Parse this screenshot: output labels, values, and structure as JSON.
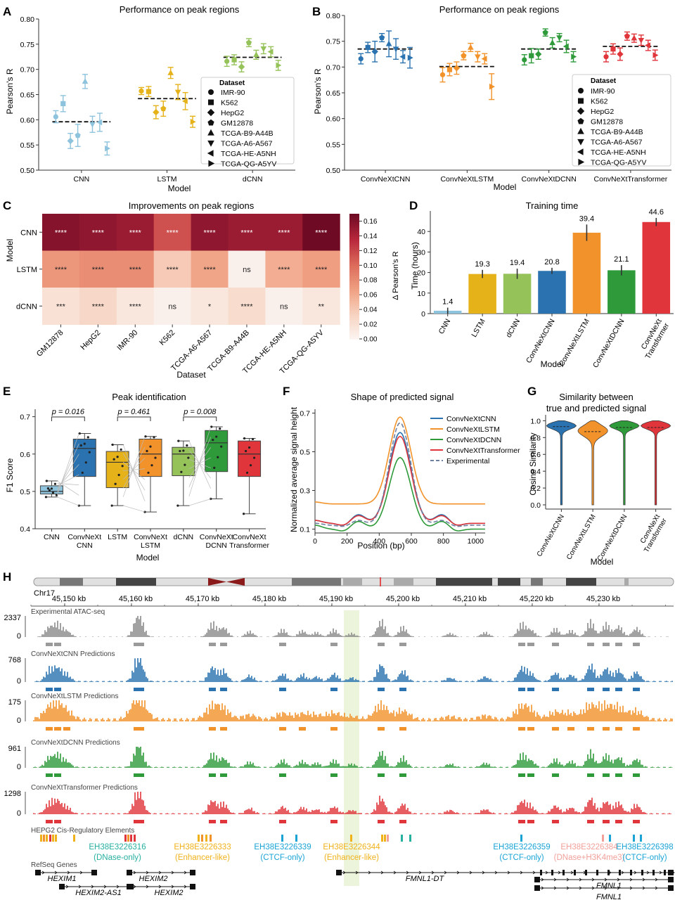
{
  "colors": {
    "CNN": "#8ec3dd",
    "LSTM": "#e6b21a",
    "dCNN": "#96c25a",
    "ConvNeXtCNN": "#2a73b0",
    "ConvNeXtLSTM": "#f2922a",
    "ConvNeXtDCNN": "#2e9a3a",
    "ConvNeXtTransformer": "#e0353b",
    "Experimental": "#8a8a8a",
    "ExperimentalLine": "#6f7fa0",
    "highlight": "#eaf3d8",
    "heat_low": "#fbf2ee",
    "heat_high": "#6e0a24"
  },
  "chart_data": [
    {
      "panel": "A",
      "type": "scatter",
      "title": "Performance on peak regions",
      "xlabel": "Model",
      "ylabel": "Pearson's R",
      "ylim": [
        0.5,
        0.8
      ],
      "yticks": [
        "0.50",
        "0.55",
        "0.60",
        "0.65",
        "0.70",
        "0.75",
        "0.80"
      ],
      "categories": [
        "CNN",
        "LSTM",
        "dCNN"
      ],
      "means": [
        0.596,
        0.642,
        0.724
      ],
      "legend_title": "Dataset",
      "legend": [
        "IMR-90",
        "K562",
        "HepG2",
        "GM12878",
        "TCGA-B9-A44B",
        "TCGA-A6-A567",
        "TCGA-HE-A5NH",
        "TCGA-QG-A5YV"
      ],
      "points": [
        [
          [
            0.606,
            0.012
          ],
          [
            0.632,
            0.016
          ],
          [
            0.558,
            0.015
          ],
          [
            0.569,
            0.022
          ],
          [
            0.676,
            0.014
          ],
          [
            0.591,
            0.016
          ],
          [
            0.595,
            0.018
          ],
          [
            0.543,
            0.013
          ]
        ],
        [
          [
            0.657,
            0.007
          ],
          [
            0.656,
            0.01
          ],
          [
            0.615,
            0.013
          ],
          [
            0.622,
            0.015
          ],
          [
            0.693,
            0.011
          ],
          [
            0.655,
            0.015
          ],
          [
            0.637,
            0.017
          ],
          [
            0.596,
            0.011
          ]
        ],
        [
          [
            0.716,
            0.01
          ],
          [
            0.719,
            0.01
          ],
          [
            0.705,
            0.01
          ],
          [
            0.753,
            0.008
          ],
          [
            0.729,
            0.009
          ],
          [
            0.741,
            0.01
          ],
          [
            0.735,
            0.01
          ],
          [
            0.708,
            0.01
          ]
        ]
      ]
    },
    {
      "panel": "B",
      "type": "scatter",
      "title": "Performance on peak regions",
      "xlabel": "Model",
      "ylabel": "Pearson's R",
      "ylim": [
        0.5,
        0.8
      ],
      "yticks": [
        "0.50",
        "0.55",
        "0.60",
        "0.65",
        "0.70",
        "0.75",
        "0.80"
      ],
      "categories": [
        "ConvNeXtCNN",
        "ConvNeXtLSTM",
        "ConvNeXtDCNN",
        "ConvNeXtTransformer"
      ],
      "means": [
        0.735,
        0.701,
        0.735,
        0.74
      ],
      "legend_title": "Dataset",
      "legend": [
        "IMR-90",
        "K562",
        "HepG2",
        "GM12878",
        "TCGA-B9-A44B",
        "TCGA-A6-A567",
        "TCGA-HE-A5NH",
        "TCGA-QG-A5YV"
      ],
      "points": [
        [
          [
            0.716,
            0.01
          ],
          [
            0.738,
            0.01
          ],
          [
            0.73,
            0.02
          ],
          [
            0.757,
            0.008
          ],
          [
            0.745,
            0.025
          ],
          [
            0.735,
            0.02
          ],
          [
            0.72,
            0.012
          ],
          [
            0.718,
            0.02
          ]
        ],
        [
          [
            0.685,
            0.014
          ],
          [
            0.695,
            0.012
          ],
          [
            0.698,
            0.012
          ],
          [
            0.722,
            0.008
          ],
          [
            0.738,
            0.008
          ],
          [
            0.72,
            0.01
          ],
          [
            0.716,
            0.01
          ],
          [
            0.662,
            0.025
          ]
        ],
        [
          [
            0.714,
            0.01
          ],
          [
            0.722,
            0.014
          ],
          [
            0.725,
            0.01
          ],
          [
            0.767,
            0.007
          ],
          [
            0.747,
            0.01
          ],
          [
            0.757,
            0.008
          ],
          [
            0.74,
            0.012
          ],
          [
            0.72,
            0.01
          ]
        ]
      ],
      "points_transformer": [
        [
          0.72,
          0.01
        ],
        [
          0.735,
          0.01
        ],
        [
          0.725,
          0.012
        ],
        [
          0.76,
          0.008
        ],
        [
          0.756,
          0.008
        ],
        [
          0.752,
          0.01
        ],
        [
          0.742,
          0.01
        ],
        [
          0.723,
          0.01
        ]
      ]
    },
    {
      "panel": "C",
      "type": "heatmap",
      "title": "Improvements on peak regions",
      "xlabel": "Dataset",
      "ylabel": "Model",
      "columns": [
        "GM12878",
        "HepG2",
        "IMR-90",
        "K562",
        "TCGA-A6-A567",
        "TCGA-B9-A44B",
        "TCGA-HE-A5NH",
        "TCGA-QG-A5YV"
      ],
      "rows": [
        "CNN",
        "LSTM",
        "dCNN"
      ],
      "values": [
        [
          0.16,
          0.155,
          0.15,
          0.115,
          0.155,
          0.15,
          0.15,
          0.175
        ],
        [
          0.075,
          0.08,
          0.08,
          0.04,
          0.065,
          0.005,
          0.06,
          0.07
        ],
        [
          0.02,
          0.03,
          0.015,
          0.005,
          0.015,
          0.025,
          0.005,
          0.015
        ]
      ],
      "labels": [
        [
          "****",
          "****",
          "****",
          "****",
          "****",
          "****",
          "****",
          "****"
        ],
        [
          "****",
          "****",
          "****",
          "****",
          "****",
          "ns",
          "****",
          "****"
        ],
        [
          "***",
          "****",
          "****",
          "ns",
          "*",
          "****",
          "ns",
          "**"
        ]
      ],
      "colorbar_label": "Δ Pearson's R",
      "colorbar_range": [
        0,
        0.17
      ],
      "colorbar_ticks": [
        "0.00",
        "0.02",
        "0.04",
        "0.06",
        "0.08",
        "0.10",
        "0.12",
        "0.14",
        "0.16"
      ]
    },
    {
      "panel": "D",
      "type": "bar",
      "title": "Training time",
      "xlabel": "Model",
      "ylabel": "Time (hours)",
      "ylim": [
        0,
        50
      ],
      "yticks": [
        "0",
        "10",
        "20",
        "30",
        "40"
      ],
      "categories": [
        "CNN",
        "LSTM",
        "dCNN",
        "ConvNeXtCNN",
        "ConvNeXtLSTM",
        "ConvNeXtDCNN",
        "ConvNeXt Transformer"
      ],
      "values": [
        1.4,
        19.3,
        19.4,
        20.8,
        39.4,
        21.1,
        44.6
      ],
      "value_labels": [
        "1.4",
        "19.3",
        "19.4",
        "20.8",
        "39.4",
        "21.1",
        "44.6"
      ],
      "errors": [
        1.5,
        2.0,
        2.5,
        1.5,
        4.0,
        2.5,
        2.0
      ]
    },
    {
      "panel": "E",
      "type": "box",
      "title": "Peak identification",
      "xlabel": "Model",
      "ylabel": "F1 Score",
      "ylim": [
        0.4,
        0.72
      ],
      "yticks": [
        "0.4",
        "0.5",
        "0.6",
        "0.7"
      ],
      "categories": [
        "CNN",
        "ConvNeXt CNN",
        "LSTM",
        "ConvNeXt LSTM",
        "dCNN",
        "ConvNeXt DCNN",
        "ConvNeXt Transformer"
      ],
      "stats": [
        [
          0.485,
          0.493,
          0.5,
          0.515,
          0.528
        ],
        [
          0.462,
          0.54,
          0.615,
          0.64,
          0.655
        ],
        [
          0.462,
          0.51,
          0.578,
          0.607,
          0.625
        ],
        [
          0.445,
          0.54,
          0.6,
          0.64,
          0.647
        ],
        [
          0.462,
          0.542,
          0.6,
          0.618,
          0.635
        ],
        [
          0.48,
          0.553,
          0.63,
          0.663,
          0.673
        ],
        [
          0.44,
          0.54,
          0.6,
          0.635,
          0.642
        ]
      ],
      "pvalues": [
        "p = 0.016",
        "p = 0.461",
        "p = 0.008"
      ]
    },
    {
      "panel": "F",
      "type": "line",
      "title": "Shape of predicted signal",
      "xlabel": "Position (bp)",
      "ylabel": "Normalized average signal height",
      "xlim": [
        0,
        1060
      ],
      "ylim": [
        0.08,
        0.72
      ],
      "xticks": [
        "0",
        "200",
        "400",
        "600",
        "800",
        "1000"
      ],
      "yticks": [
        "0.1",
        "0.3",
        "0.5",
        "0.7"
      ],
      "series": [
        {
          "name": "ConvNeXtCNN",
          "base": 0.13,
          "peak": 0.6,
          "side": 0.045,
          "edge": 0.015
        },
        {
          "name": "ConvNeXtLSTM",
          "base": 0.23,
          "peak": 0.68,
          "side": 0.01,
          "edge": 0.01
        },
        {
          "name": "ConvNeXtDCNN",
          "base": 0.1,
          "peak": 0.47,
          "side": 0.04,
          "edge": 0.02
        },
        {
          "name": "ConvNeXtTransformer",
          "base": 0.13,
          "peak": 0.58,
          "side": 0.04,
          "edge": 0.015
        },
        {
          "name": "Experimental",
          "base": 0.12,
          "peak": 0.65,
          "side": 0.025,
          "edge": 0.01
        }
      ]
    },
    {
      "panel": "G",
      "type": "violin",
      "title": "Similarity between true and predicted signal",
      "xlabel": "Model",
      "ylabel": "Cosine Similarity",
      "ylim": [
        -0.05,
        1.07
      ],
      "yticks": [
        "0.0",
        "0.2",
        "0.4",
        "0.6",
        "0.8",
        "1.0"
      ],
      "categories": [
        "ConvNeXtCNN",
        "ConvNeXtLSTM",
        "ConvNeXtDCNN",
        "ConvNeXt Transformer"
      ],
      "medians": [
        0.93,
        0.87,
        0.92,
        0.92
      ],
      "modes": [
        0.94,
        0.88,
        0.94,
        0.94
      ]
    }
  ],
  "panel_labels": [
    "A",
    "B",
    "C",
    "D",
    "E",
    "F",
    "G",
    "H"
  ],
  "browser": {
    "chrom": "Chr17",
    "ruler": [
      "45,150 kb",
      "45,160 kb",
      "45,170 kb",
      "45,180 kb",
      "45,190 kb",
      "45,200 kb",
      "45,210 kb",
      "45,220 kb",
      "45,230 kb"
    ],
    "tracks": [
      {
        "label": "Experimental ATAC-seq",
        "max": "2337",
        "min": "0"
      },
      {
        "label": "ConvNeXtCNN Predictions",
        "max": "768",
        "min": "0"
      },
      {
        "label": "ConvNeXtLSTM Predictions",
        "max": "175",
        "min": "0"
      },
      {
        "label": "ConvNeXtDCNN Predictions",
        "max": "961",
        "min": "0"
      },
      {
        "label": "ConvNeXtTransformer Predictions",
        "max": "1298",
        "min": "0"
      }
    ],
    "ccre_title": "HEPG2 Cis-Regulatory Elements",
    "ccre": [
      {
        "id": "EH38E3226316",
        "type": "(DNase-only)",
        "color": "#26b0a0"
      },
      {
        "id": "EH38E3226333",
        "type": "(Enhancer-like)",
        "color": "#f0b21a"
      },
      {
        "id": "EH38E3226339",
        "type": "(CTCF-only)",
        "color": "#1aa4d6"
      },
      {
        "id": "EH38E3226344",
        "type": "(Enhancer-like)",
        "color": "#f0b21a"
      },
      {
        "id": "EH38E3226359",
        "type": "(CTCF-only)",
        "color": "#1aa4d6"
      },
      {
        "id": "EH38E3226384",
        "type": "(DNase+H3K4me3)",
        "color": "#f2a09a"
      },
      {
        "id": "EH38E3226398",
        "type": "(CTCF-only)",
        "color": "#1aa4d6"
      }
    ],
    "genes_title": "RefSeq Genes",
    "genes": [
      "HEXIM1",
      "HEXIM2",
      "HEXIM2-AS1",
      "HEXIM2",
      "FMNL1-DT",
      "FMNL1",
      "FMNL1"
    ]
  }
}
